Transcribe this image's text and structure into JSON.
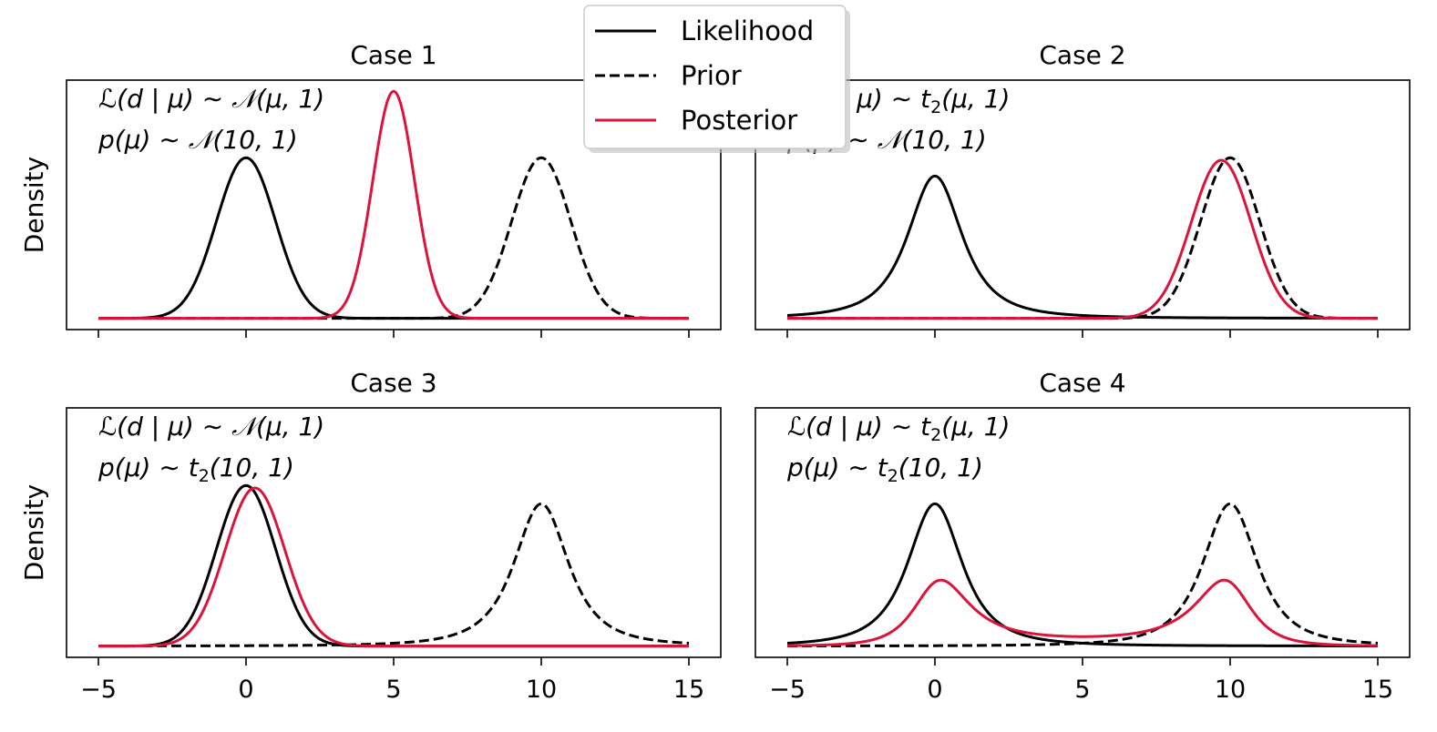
{
  "chart_data": {
    "type": "line",
    "layout": "2x2 grid, shared x and y axes",
    "x_range": [
      -5,
      15
    ],
    "xticks": [
      -5,
      0,
      5,
      10,
      15
    ],
    "xtick_labels": [
      "−5",
      "0",
      "5",
      "10",
      "15"
    ],
    "ylabel": "Density",
    "ylim": [
      -0.028,
      0.592
    ],
    "yticks_visible": false,
    "legend": {
      "placement": "top-center",
      "entries": [
        {
          "label": "Likelihood",
          "color": "#000000",
          "style": "solid"
        },
        {
          "label": "Prior",
          "color": "#000000",
          "style": "dashed"
        },
        {
          "label": "Posterior",
          "color": "#DC143C",
          "style": "solid"
        }
      ]
    },
    "panels": [
      {
        "title": "Case 1",
        "likelihood": {
          "dist": "normal",
          "loc": 0,
          "scale": 1
        },
        "prior": {
          "dist": "normal",
          "loc": 10,
          "scale": 1
        },
        "ann_line1": [
          "ℒ(d | μ) ∼ ",
          "𝒩",
          "(μ, 1)"
        ],
        "ann_line2": [
          "p(μ) ∼ ",
          "𝒩",
          "(10, 1)"
        ]
      },
      {
        "title": "Case 2",
        "likelihood": {
          "dist": "t",
          "df": 2,
          "loc": 0,
          "scale": 1
        },
        "prior": {
          "dist": "normal",
          "loc": 10,
          "scale": 1
        },
        "ann_line1": [
          "ℒ(d | μ) ∼ ",
          "t",
          "2",
          "(μ, 1)"
        ],
        "ann_line2": [
          "p(μ) ∼ ",
          "𝒩",
          "(10, 1)"
        ]
      },
      {
        "title": "Case 3",
        "likelihood": {
          "dist": "normal",
          "loc": 0,
          "scale": 1
        },
        "prior": {
          "dist": "t",
          "df": 2,
          "loc": 10,
          "scale": 1
        },
        "ann_line1": [
          "ℒ(d | μ) ∼ ",
          "𝒩",
          "(μ, 1)"
        ],
        "ann_line2": [
          "p(μ) ∼ ",
          "t",
          "2",
          "(10, 1)"
        ]
      },
      {
        "title": "Case 4",
        "likelihood": {
          "dist": "t",
          "df": 2,
          "loc": 0,
          "scale": 1
        },
        "prior": {
          "dist": "t",
          "df": 2,
          "loc": 10,
          "scale": 1
        },
        "ann_line1": [
          "ℒ(d | μ) ∼ ",
          "t",
          "2",
          "(μ, 1)"
        ],
        "ann_line2": [
          "p(μ) ∼ ",
          "t",
          "2",
          "(10, 1)"
        ]
      }
    ]
  }
}
